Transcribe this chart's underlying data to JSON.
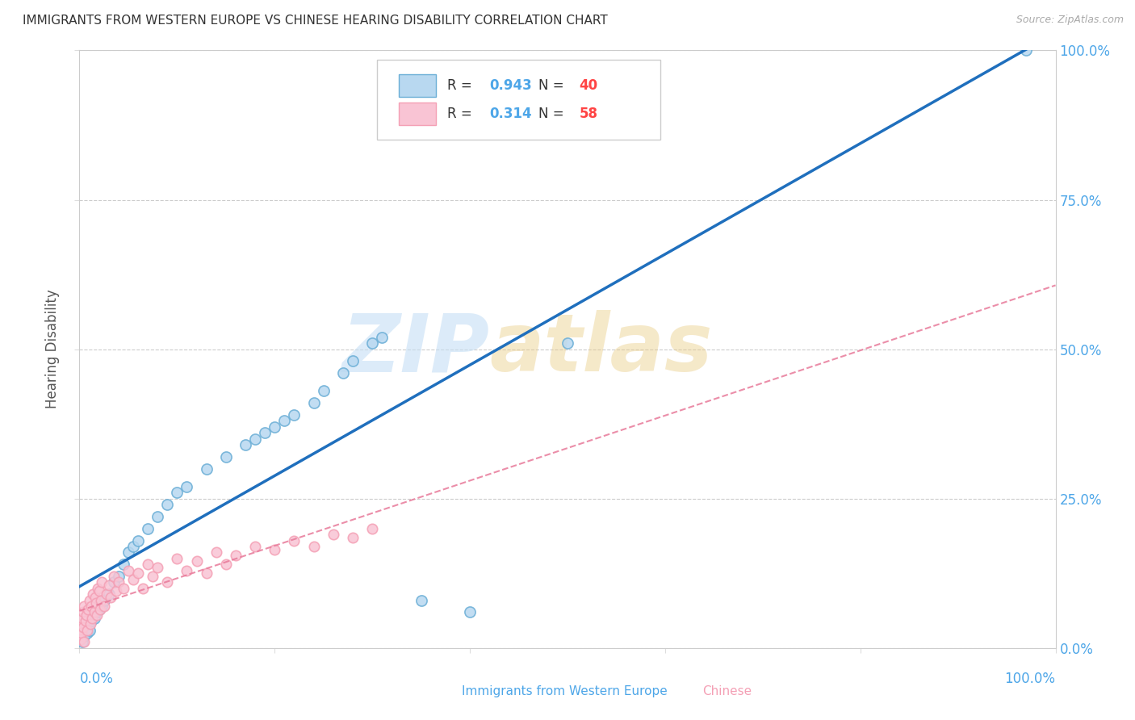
{
  "title": "IMMIGRANTS FROM WESTERN EUROPE VS CHINESE HEARING DISABILITY CORRELATION CHART",
  "source": "Source: ZipAtlas.com",
  "ylabel": "Hearing Disability",
  "legend_blue_r": "0.943",
  "legend_blue_n": "40",
  "legend_pink_r": "0.314",
  "legend_pink_n": "58",
  "legend_label_blue": "Immigrants from Western Europe",
  "legend_label_pink": "Chinese",
  "blue_color": "#6aaed6",
  "pink_color": "#f4a0b5",
  "line_blue_color": "#1f6fbd",
  "line_pink_color": "#e87a9a",
  "watermark_zip": "ZIP",
  "watermark_atlas": "atlas",
  "background_color": "#ffffff",
  "grid_color": "#cccccc",
  "axis_label_color": "#4da6e8",
  "title_color": "#333333",
  "blue_scatter_x": [
    0.3,
    0.5,
    0.8,
    1.0,
    1.2,
    1.5,
    1.8,
    2.0,
    2.3,
    2.5,
    3.0,
    3.5,
    4.0,
    4.5,
    5.0,
    5.5,
    6.0,
    7.0,
    8.0,
    9.0,
    10.0,
    11.0,
    13.0,
    15.0,
    17.0,
    18.0,
    19.0,
    20.0,
    21.0,
    22.0,
    24.0,
    25.0,
    27.0,
    28.0,
    30.0,
    31.0,
    35.0,
    40.0,
    50.0,
    97.0
  ],
  "blue_scatter_y": [
    1.0,
    2.0,
    2.5,
    3.0,
    4.5,
    5.0,
    6.0,
    6.5,
    7.0,
    8.0,
    9.0,
    11.0,
    12.0,
    14.0,
    16.0,
    17.0,
    18.0,
    20.0,
    22.0,
    24.0,
    26.0,
    27.0,
    30.0,
    32.0,
    34.0,
    35.0,
    36.0,
    37.0,
    38.0,
    39.0,
    41.0,
    43.0,
    46.0,
    48.0,
    51.0,
    52.0,
    8.0,
    6.0,
    51.0,
    100.0
  ],
  "pink_scatter_x": [
    0.05,
    0.1,
    0.15,
    0.2,
    0.25,
    0.3,
    0.35,
    0.4,
    0.45,
    0.5,
    0.6,
    0.7,
    0.8,
    0.9,
    1.0,
    1.1,
    1.2,
    1.3,
    1.4,
    1.5,
    1.6,
    1.7,
    1.8,
    1.9,
    2.0,
    2.1,
    2.2,
    2.3,
    2.5,
    2.8,
    3.0,
    3.2,
    3.5,
    3.8,
    4.0,
    4.5,
    5.0,
    5.5,
    6.0,
    6.5,
    7.0,
    7.5,
    8.0,
    9.0,
    10.0,
    11.0,
    12.0,
    13.0,
    14.0,
    15.0,
    16.0,
    18.0,
    20.0,
    22.0,
    24.0,
    26.0,
    28.0,
    30.0
  ],
  "pink_scatter_y": [
    2.0,
    3.0,
    1.5,
    4.0,
    2.5,
    5.0,
    3.5,
    6.0,
    1.0,
    7.0,
    4.5,
    5.5,
    3.0,
    6.5,
    8.0,
    4.0,
    7.0,
    5.0,
    9.0,
    6.0,
    8.5,
    7.5,
    5.5,
    10.0,
    9.5,
    6.5,
    8.0,
    11.0,
    7.0,
    9.0,
    10.5,
    8.5,
    12.0,
    9.5,
    11.0,
    10.0,
    13.0,
    11.5,
    12.5,
    10.0,
    14.0,
    12.0,
    13.5,
    11.0,
    15.0,
    13.0,
    14.5,
    12.5,
    16.0,
    14.0,
    15.5,
    17.0,
    16.5,
    18.0,
    17.0,
    19.0,
    18.5,
    20.0
  ]
}
